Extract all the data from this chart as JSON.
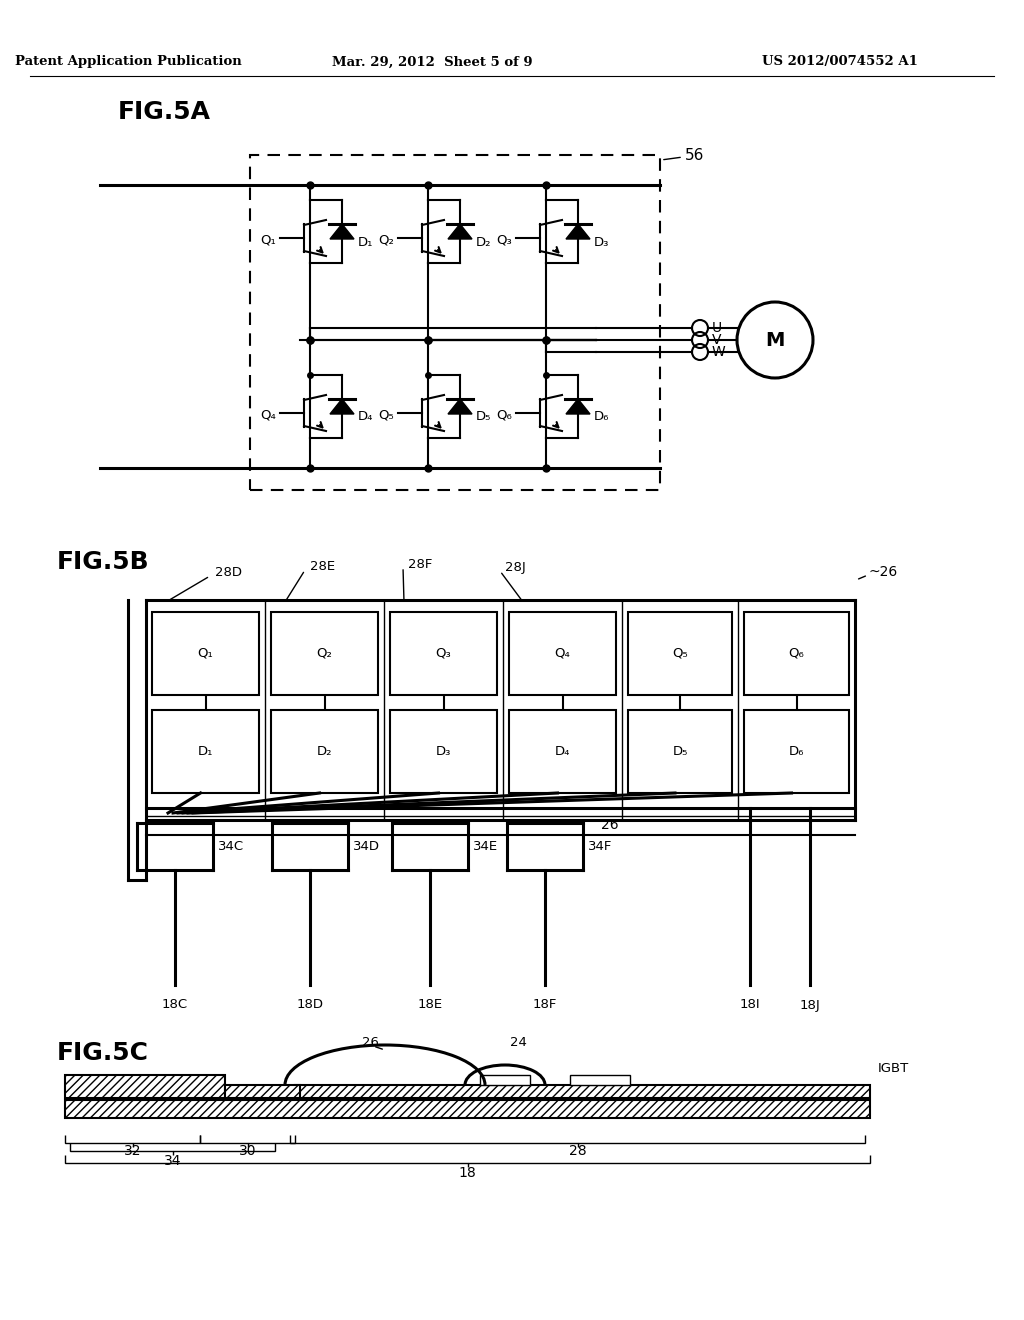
{
  "bg_color": "#ffffff",
  "header_left": "Patent Application Publication",
  "header_mid": "Mar. 29, 2012  Sheet 5 of 9",
  "header_right": "US 2012/0074552 A1",
  "fig5a_label": "FIG.5A",
  "fig5b_label": "FIG.5B",
  "fig5c_label": "FIG.5C",
  "Q_labels": [
    "Q₁",
    "Q₂",
    "Q₃",
    "Q₄",
    "Q₅",
    "Q₆"
  ],
  "D_labels": [
    "D₁",
    "D₂",
    "D₃",
    "D₄",
    "D₅",
    "D₆"
  ],
  "UVW": [
    "U",
    "V",
    "W"
  ],
  "M_label": "M",
  "label_56": "56",
  "module_top_labels": [
    "28D",
    "28E",
    "28F",
    "28J"
  ],
  "lead_labels": [
    "34C",
    "34D",
    "34E",
    "34F"
  ],
  "pin_labels": [
    "18C",
    "18D",
    "18E",
    "18F",
    "18I",
    "18J"
  ],
  "label_26": "26",
  "label_26b": "~26",
  "label_24": "24",
  "label_IGBT": "IGBT",
  "brace_labels": [
    "32",
    "34",
    "30",
    "28",
    "18"
  ]
}
